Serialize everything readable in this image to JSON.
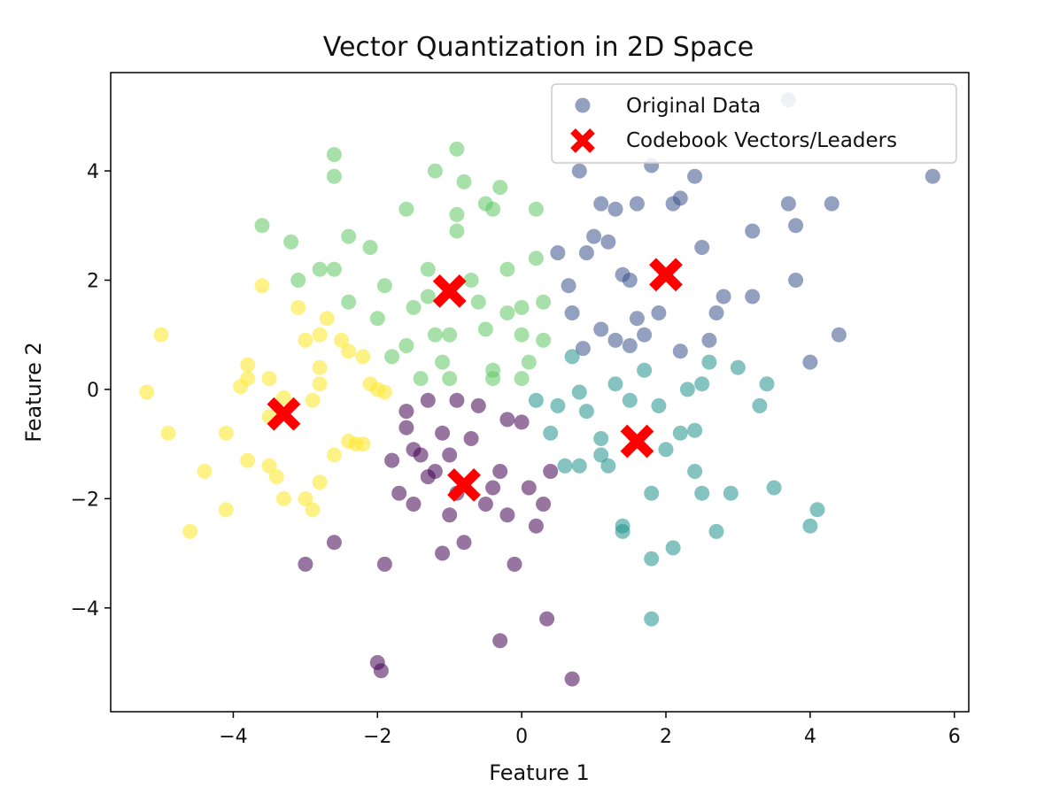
{
  "chart_data": {
    "type": "scatter",
    "title": "Vector Quantization in 2D Space",
    "xlabel": "Feature 1",
    "ylabel": "Feature 2",
    "xlim": [
      -5.7,
      6.2
    ],
    "ylim": [
      -5.9,
      5.8
    ],
    "xticks": [
      -4,
      -2,
      0,
      2,
      4,
      6
    ],
    "yticks": [
      -4,
      -2,
      0,
      2,
      4
    ],
    "grid": false,
    "legend": {
      "placement": "upper-right",
      "entries": [
        "Original Data",
        "Codebook Vectors/Leaders"
      ]
    },
    "cluster_colors": [
      "#440154",
      "#3b528b",
      "#21918c",
      "#5ec962",
      "#fde725"
    ],
    "series": [
      {
        "name": "Original Data",
        "cluster_colors_note": "color index = assigned cluster",
        "points": [
          [
            -1.8,
            -1.3,
            0
          ],
          [
            -1.5,
            -1.1,
            0
          ],
          [
            -1.3,
            -1.6,
            0
          ],
          [
            -1.0,
            -1.2,
            0
          ],
          [
            -0.9,
            -1.9,
            0
          ],
          [
            -0.6,
            -0.3,
            0
          ],
          [
            -0.5,
            -2.1,
            0
          ],
          [
            -0.3,
            -1.5,
            0
          ],
          [
            -0.2,
            -2.3,
            0
          ],
          [
            0.0,
            -0.6,
            0
          ],
          [
            0.1,
            -1.8,
            0
          ],
          [
            0.2,
            -2.5,
            0
          ],
          [
            0.4,
            -1.5,
            0
          ],
          [
            -1.1,
            -0.8,
            0
          ],
          [
            -1.6,
            -0.7,
            0
          ],
          [
            -1.7,
            -1.9,
            0
          ],
          [
            -2.6,
            -2.8,
            0
          ],
          [
            -3.0,
            -3.2,
            0
          ],
          [
            -1.9,
            -3.2,
            0
          ],
          [
            -1.1,
            -3.0,
            0
          ],
          [
            -0.8,
            -2.8,
            0
          ],
          [
            -0.1,
            -3.2,
            0
          ],
          [
            -2.0,
            -5.0,
            0
          ],
          [
            -1.95,
            -5.15,
            0
          ],
          [
            -0.3,
            -4.6,
            0
          ],
          [
            0.7,
            -5.3,
            0
          ],
          [
            0.35,
            -4.2,
            0
          ],
          [
            -1.2,
            -1.5,
            0
          ],
          [
            -0.7,
            -0.9,
            0
          ],
          [
            -1.4,
            -1.2,
            0
          ],
          [
            0.3,
            -2.1,
            0
          ],
          [
            -0.9,
            -0.2,
            0
          ],
          [
            -1.3,
            -0.2,
            0
          ],
          [
            -0.4,
            -1.8,
            0
          ],
          [
            -1.6,
            -0.4,
            0
          ],
          [
            -1.0,
            -2.3,
            0
          ],
          [
            -0.2,
            -0.55,
            0
          ],
          [
            -1.5,
            -2.1,
            0
          ],
          [
            0.5,
            2.5,
            1
          ],
          [
            0.7,
            1.4,
            1
          ],
          [
            0.9,
            2.5,
            1
          ],
          [
            1.1,
            1.1,
            1
          ],
          [
            1.3,
            0.9,
            1
          ],
          [
            1.5,
            2.0,
            1
          ],
          [
            1.6,
            1.3,
            1
          ],
          [
            1.9,
            1.4,
            1
          ],
          [
            2.2,
            3.5,
            1
          ],
          [
            2.5,
            2.6,
            1
          ],
          [
            2.8,
            1.7,
            1
          ],
          [
            3.2,
            2.9,
            1
          ],
          [
            3.7,
            3.4,
            1
          ],
          [
            3.8,
            3.0,
            1
          ],
          [
            3.8,
            2.0,
            1
          ],
          [
            4.3,
            3.4,
            1
          ],
          [
            4.4,
            1.0,
            1
          ],
          [
            4.0,
            0.5,
            1
          ],
          [
            5.7,
            3.9,
            1
          ],
          [
            3.7,
            5.3,
            1
          ],
          [
            2.4,
            3.9,
            1
          ],
          [
            1.1,
            3.4,
            1
          ],
          [
            1.3,
            3.3,
            1
          ],
          [
            1.6,
            3.4,
            1
          ],
          [
            1.8,
            4.1,
            1
          ],
          [
            2.1,
            3.4,
            1
          ],
          [
            0.8,
            4.0,
            1
          ],
          [
            1.0,
            2.8,
            1
          ],
          [
            1.4,
            2.1,
            1
          ],
          [
            1.7,
            1.0,
            1
          ],
          [
            2.2,
            0.7,
            1
          ],
          [
            2.6,
            0.9,
            1
          ],
          [
            2.7,
            1.4,
            1
          ],
          [
            3.2,
            1.7,
            1
          ],
          [
            0.65,
            1.9,
            1
          ],
          [
            1.2,
            2.7,
            1
          ],
          [
            0.85,
            0.75,
            1
          ],
          [
            1.5,
            0.8,
            1
          ],
          [
            0.5,
            -0.3,
            2
          ],
          [
            0.8,
            -1.4,
            2
          ],
          [
            1.1,
            -0.9,
            2
          ],
          [
            1.2,
            -1.4,
            2
          ],
          [
            1.4,
            -2.5,
            2
          ],
          [
            1.5,
            -0.2,
            2
          ],
          [
            1.8,
            -1.9,
            2
          ],
          [
            2.0,
            -1.1,
            2
          ],
          [
            2.2,
            -0.8,
            2
          ],
          [
            2.4,
            -1.5,
            2
          ],
          [
            2.5,
            -1.9,
            2
          ],
          [
            2.7,
            -2.6,
            2
          ],
          [
            2.9,
            -1.9,
            2
          ],
          [
            3.0,
            0.4,
            2
          ],
          [
            3.3,
            -0.3,
            2
          ],
          [
            3.4,
            0.1,
            2
          ],
          [
            3.5,
            -1.8,
            2
          ],
          [
            4.0,
            -2.5,
            2
          ],
          [
            4.1,
            -2.2,
            2
          ],
          [
            1.8,
            -3.1,
            2
          ],
          [
            2.1,
            -2.9,
            2
          ],
          [
            1.8,
            -4.2,
            2
          ],
          [
            1.4,
            -2.6,
            2
          ],
          [
            0.9,
            -0.4,
            2
          ],
          [
            1.3,
            0.1,
            2
          ],
          [
            2.3,
            0.0,
            2
          ],
          [
            2.6,
            0.5,
            2
          ],
          [
            2.5,
            0.1,
            2
          ],
          [
            1.7,
            0.35,
            2
          ],
          [
            0.4,
            -0.8,
            2
          ],
          [
            0.6,
            -1.4,
            2
          ],
          [
            0.7,
            0.6,
            2
          ],
          [
            0.2,
            -0.2,
            2
          ],
          [
            1.9,
            -0.3,
            2
          ],
          [
            2.4,
            -0.75,
            2
          ],
          [
            1.1,
            -1.2,
            2
          ],
          [
            0.8,
            -0.05,
            2
          ],
          [
            -2.6,
            4.3,
            3
          ],
          [
            -2.6,
            3.9,
            3
          ],
          [
            -3.6,
            3.0,
            3
          ],
          [
            -3.2,
            2.7,
            3
          ],
          [
            -2.4,
            2.8,
            3
          ],
          [
            -2.1,
            2.6,
            3
          ],
          [
            -1.6,
            3.3,
            3
          ],
          [
            -1.2,
            4.0,
            3
          ],
          [
            -0.9,
            4.4,
            3
          ],
          [
            -0.8,
            3.8,
            3
          ],
          [
            -0.5,
            3.4,
            3
          ],
          [
            -0.3,
            3.7,
            3
          ],
          [
            -0.4,
            3.3,
            3
          ],
          [
            -0.2,
            2.2,
            3
          ],
          [
            0.2,
            2.4,
            3
          ],
          [
            0.3,
            1.6,
            3
          ],
          [
            -0.9,
            2.9,
            3
          ],
          [
            -0.9,
            3.2,
            3
          ],
          [
            -1.3,
            1.7,
            3
          ],
          [
            -1.5,
            1.5,
            3
          ],
          [
            -1.2,
            1.0,
            3
          ],
          [
            -1.0,
            1.0,
            3
          ],
          [
            -0.5,
            1.1,
            3
          ],
          [
            -0.6,
            1.6,
            3
          ],
          [
            -0.2,
            1.4,
            3
          ],
          [
            0.0,
            1.0,
            3
          ],
          [
            0.3,
            0.9,
            3
          ],
          [
            0.0,
            0.2,
            3
          ],
          [
            -0.4,
            0.2,
            3
          ],
          [
            -1.0,
            0.2,
            3
          ],
          [
            -1.4,
            0.2,
            3
          ],
          [
            -1.8,
            0.6,
            3
          ],
          [
            -2.0,
            1.3,
            3
          ],
          [
            -2.4,
            1.6,
            3
          ],
          [
            -2.6,
            2.2,
            3
          ],
          [
            -2.8,
            2.2,
            3
          ],
          [
            -3.1,
            2.0,
            3
          ],
          [
            -1.3,
            2.2,
            3
          ],
          [
            -1.9,
            1.9,
            3
          ],
          [
            -0.7,
            2.0,
            3
          ],
          [
            -0.4,
            0.35,
            3
          ],
          [
            0.1,
            0.5,
            3
          ],
          [
            -1.1,
            0.5,
            3
          ],
          [
            -1.6,
            0.8,
            3
          ],
          [
            0.0,
            1.5,
            3
          ],
          [
            0.2,
            3.3,
            3
          ],
          [
            -5.2,
            -0.05,
            4
          ],
          [
            -5.0,
            1.0,
            4
          ],
          [
            -4.9,
            -0.8,
            4
          ],
          [
            -4.4,
            -1.5,
            4
          ],
          [
            -4.6,
            -2.6,
            4
          ],
          [
            -4.1,
            -2.2,
            4
          ],
          [
            -4.1,
            -0.8,
            4
          ],
          [
            -3.9,
            0.05,
            4
          ],
          [
            -3.8,
            0.2,
            4
          ],
          [
            -3.8,
            0.45,
            4
          ],
          [
            -3.8,
            -1.3,
            4
          ],
          [
            -3.5,
            -1.4,
            4
          ],
          [
            -3.4,
            -1.6,
            4
          ],
          [
            -3.3,
            -2.0,
            4
          ],
          [
            -3.5,
            0.2,
            4
          ],
          [
            -3.5,
            -0.5,
            4
          ],
          [
            -3.6,
            1.9,
            4
          ],
          [
            -3.1,
            1.5,
            4
          ],
          [
            -3.0,
            0.9,
            4
          ],
          [
            -2.8,
            1.0,
            4
          ],
          [
            -2.7,
            1.3,
            4
          ],
          [
            -2.5,
            0.9,
            4
          ],
          [
            -2.4,
            0.7,
            4
          ],
          [
            -2.2,
            0.6,
            4
          ],
          [
            -2.1,
            0.1,
            4
          ],
          [
            -2.0,
            0.0,
            4
          ],
          [
            -1.9,
            -0.05,
            4
          ],
          [
            -2.8,
            0.4,
            4
          ],
          [
            -2.8,
            0.1,
            4
          ],
          [
            -2.9,
            -0.2,
            4
          ],
          [
            -3.0,
            -2.0,
            4
          ],
          [
            -2.9,
            -2.2,
            4
          ],
          [
            -2.8,
            -1.7,
            4
          ],
          [
            -2.6,
            -1.2,
            4
          ],
          [
            -2.4,
            -0.95,
            4
          ],
          [
            -2.3,
            -1.0,
            4
          ],
          [
            -2.2,
            -1.0,
            4
          ],
          [
            -3.3,
            -0.15,
            4
          ]
        ]
      },
      {
        "name": "Codebook Vectors/Leaders",
        "marker": "X",
        "color": "#ff0000",
        "points": [
          [
            -3.3,
            -0.45
          ],
          [
            -1.0,
            1.8
          ],
          [
            -0.8,
            -1.75
          ],
          [
            1.6,
            -0.95
          ],
          [
            2.0,
            2.1
          ]
        ]
      }
    ]
  }
}
